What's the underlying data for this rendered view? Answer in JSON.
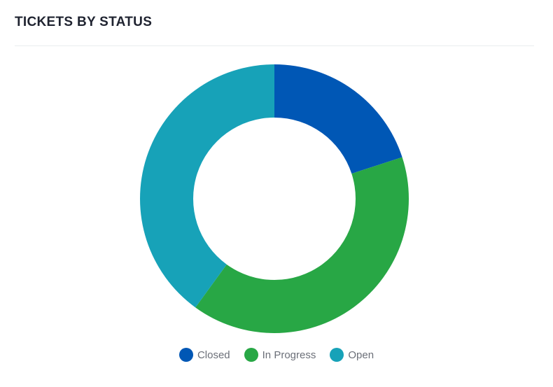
{
  "card": {
    "title": "TICKETS BY STATUS"
  },
  "chart_data": {
    "type": "pie",
    "donut": true,
    "title": "",
    "categories": [
      "Closed",
      "In Progress",
      "Open"
    ],
    "values": [
      20,
      40,
      40
    ],
    "colors": [
      "#0057b5",
      "#28a745",
      "#17a2b8"
    ],
    "legend": "bottom",
    "start_angle_deg": 0,
    "direction": "clockwise"
  }
}
